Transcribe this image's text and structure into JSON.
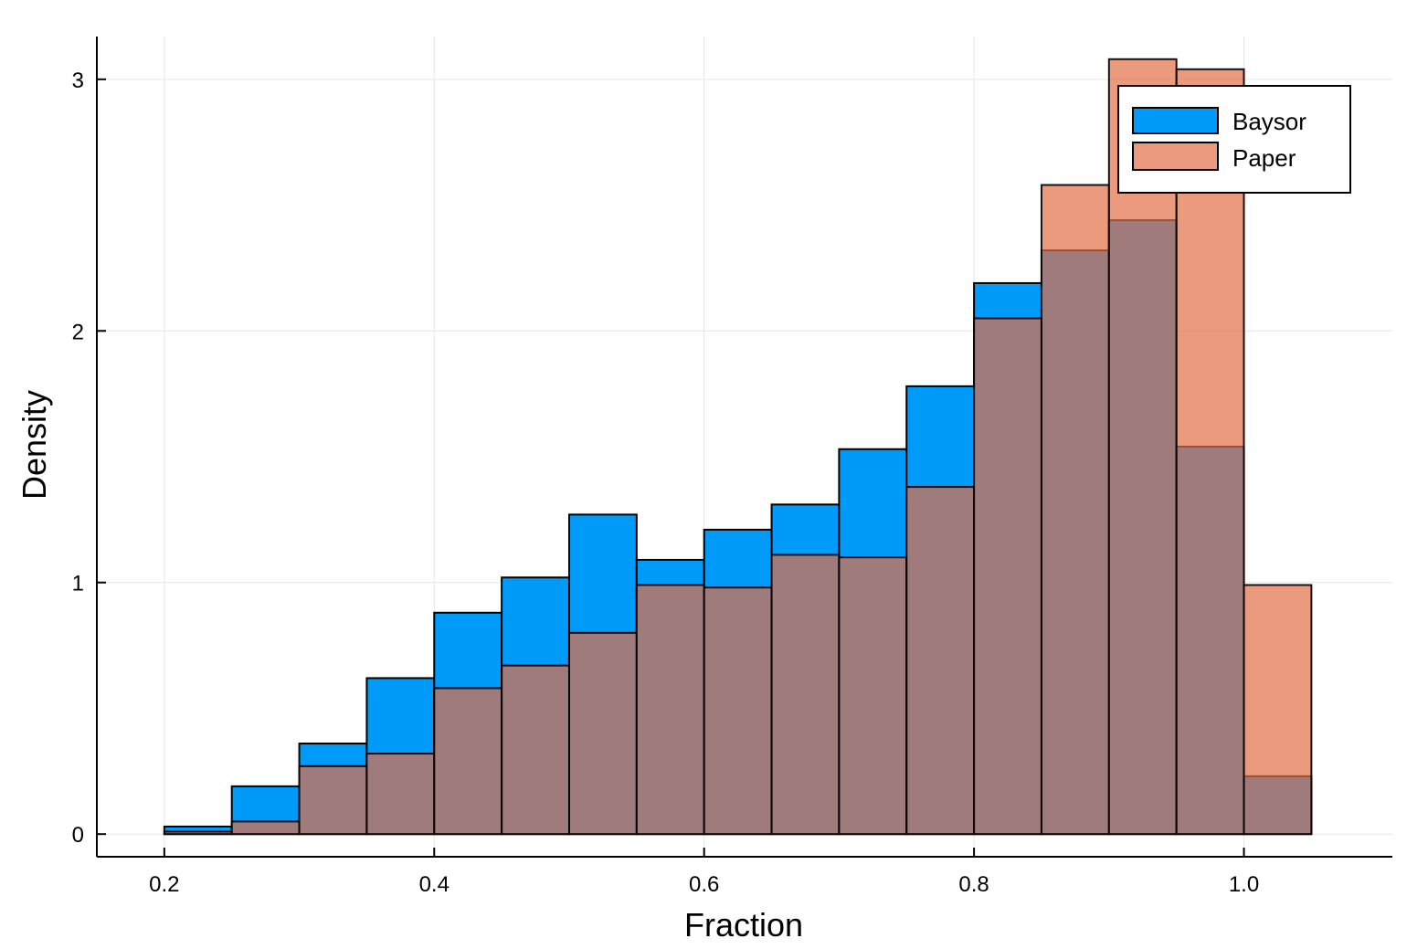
{
  "chart_data": {
    "type": "bar",
    "subtype": "overlaid-histogram",
    "xlabel": "Fraction",
    "ylabel": "Density",
    "xlim": [
      0.15,
      1.11
    ],
    "ylim": [
      -0.09,
      3.17
    ],
    "xticks": [
      0.2,
      0.4,
      0.6,
      0.8,
      1.0
    ],
    "xtick_labels": [
      "0.2",
      "0.4",
      "0.6",
      "0.8",
      "1.0"
    ],
    "yticks": [
      0,
      1,
      2,
      3
    ],
    "ytick_labels": [
      "0",
      "1",
      "2",
      "3"
    ],
    "grid": true,
    "legend_position": "top-right",
    "bin_edges": [
      0.2,
      0.25,
      0.3,
      0.35,
      0.4,
      0.45,
      0.5,
      0.55,
      0.6,
      0.65,
      0.7,
      0.75,
      0.8,
      0.85,
      0.9,
      0.95,
      1.0,
      1.05
    ],
    "series": [
      {
        "name": "Baysor",
        "color": "#009AF9",
        "opacity": 1.0,
        "values": [
          0.03,
          0.19,
          0.36,
          0.62,
          0.88,
          1.02,
          1.27,
          1.09,
          1.21,
          1.31,
          1.53,
          1.78,
          2.19,
          2.32,
          2.44,
          1.54,
          0.23
        ]
      },
      {
        "name": "Paper",
        "color": "#E26F46",
        "opacity": 0.7,
        "values": [
          0.01,
          0.05,
          0.27,
          0.32,
          0.58,
          0.67,
          0.8,
          0.99,
          0.98,
          1.11,
          1.1,
          1.38,
          2.05,
          2.58,
          3.08,
          3.04,
          0.99
        ]
      }
    ]
  }
}
